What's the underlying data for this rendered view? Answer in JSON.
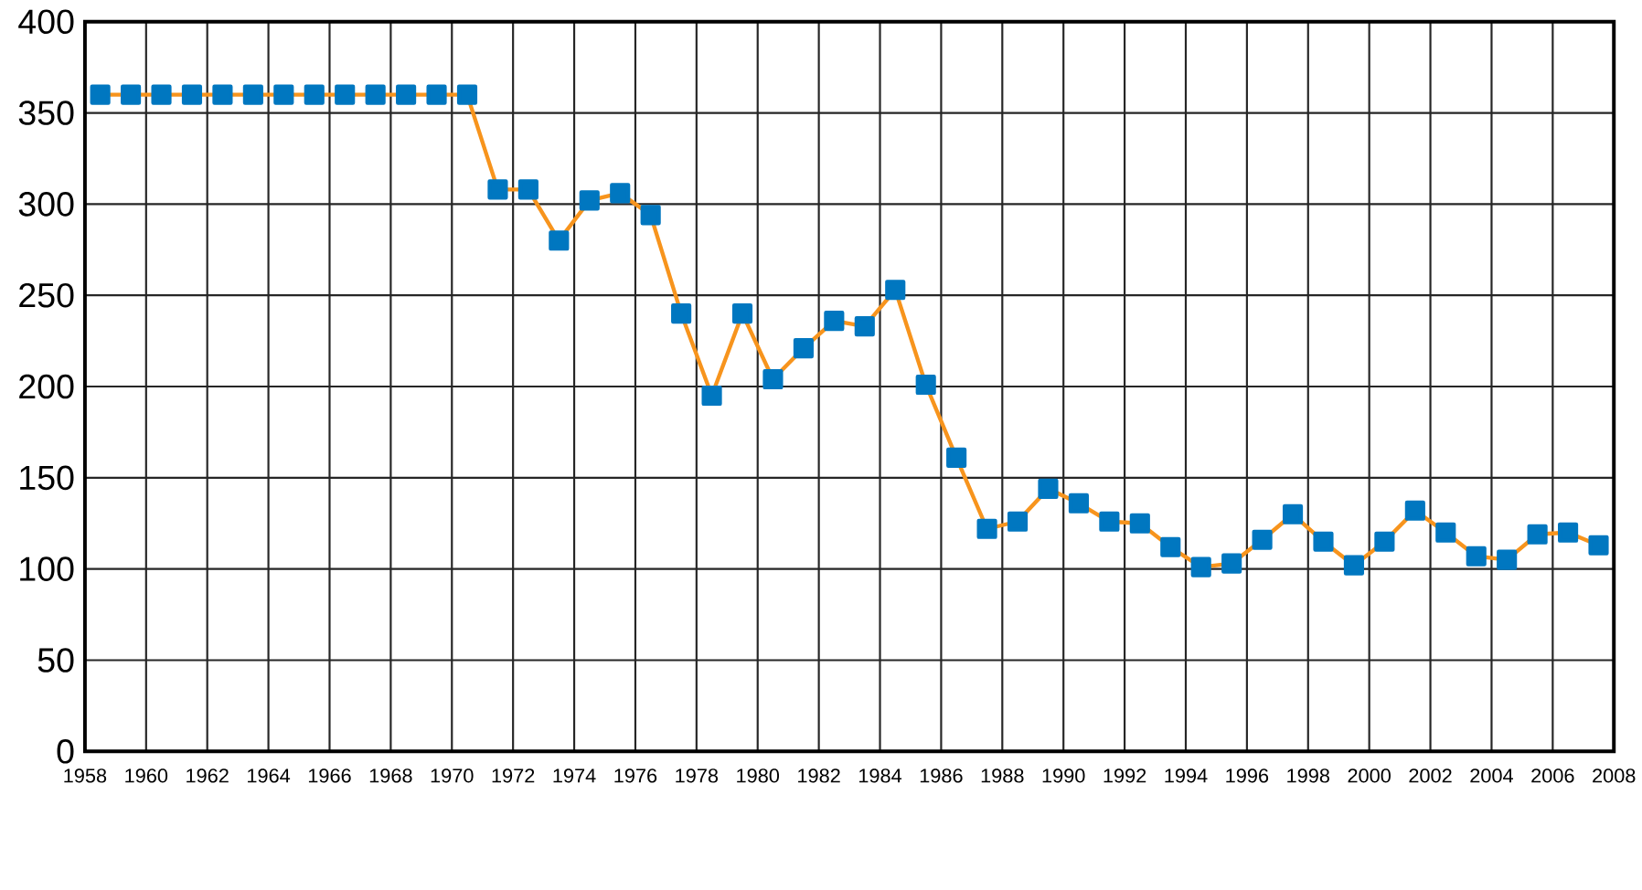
{
  "chart_data": {
    "type": "line",
    "x": [
      1958.5,
      1959.5,
      1960.5,
      1961.5,
      1962.5,
      1963.5,
      1964.5,
      1965.5,
      1966.5,
      1967.5,
      1968.5,
      1969.5,
      1970.5,
      1971.5,
      1972.5,
      1973.5,
      1974.5,
      1975.5,
      1976.5,
      1977.5,
      1978.5,
      1979.5,
      1980.5,
      1981.5,
      1982.5,
      1983.5,
      1984.5,
      1985.5,
      1986.5,
      1987.5,
      1988.5,
      1989.5,
      1990.5,
      1991.5,
      1992.5,
      1993.5,
      1994.5,
      1995.5,
      1996.5,
      1997.5,
      1998.5,
      1999.5,
      2000.5,
      2001.5,
      2002.5,
      2003.5,
      2004.5,
      2005.5,
      2006.5,
      2007.5
    ],
    "series": [
      {
        "color": "#f7941d",
        "values": [
          360,
          360,
          360,
          360,
          360,
          360,
          360,
          360,
          360,
          360,
          360,
          360,
          360,
          308,
          308,
          280,
          302,
          306,
          294,
          240,
          195,
          240,
          204,
          221,
          236,
          233,
          253,
          201,
          161,
          122,
          126,
          144,
          136,
          126,
          125,
          112,
          101,
          103,
          116,
          130,
          115,
          102,
          115,
          132,
          120,
          107,
          105,
          119,
          120,
          113
        ]
      }
    ],
    "xlim": [
      1958,
      2008
    ],
    "xticks": [
      1958,
      1960,
      1962,
      1964,
      1966,
      1968,
      1970,
      1972,
      1974,
      1976,
      1978,
      1980,
      1982,
      1984,
      1986,
      1988,
      1990,
      1992,
      1994,
      1996,
      1998,
      2000,
      2002,
      2004,
      2006,
      2008
    ],
    "ylim": [
      0,
      400
    ],
    "yticks": [
      0,
      50,
      100,
      150,
      200,
      250,
      300,
      350,
      400
    ],
    "grid": true,
    "marker": "square",
    "line_style": "solid"
  }
}
